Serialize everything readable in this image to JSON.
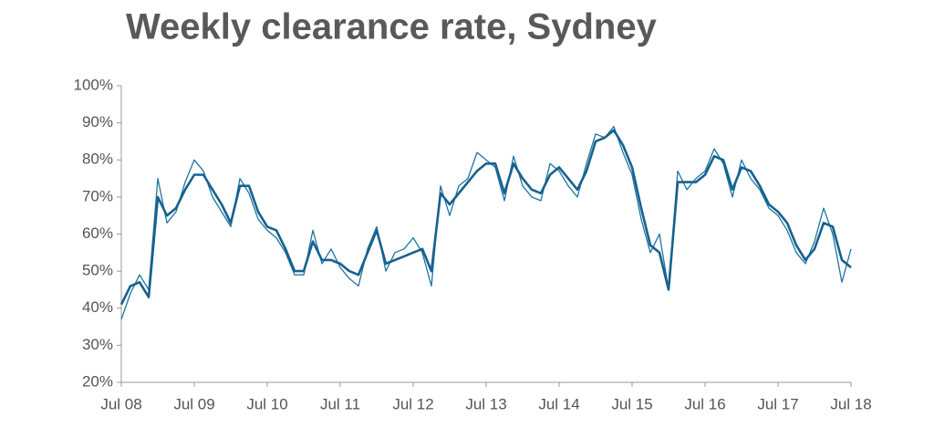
{
  "chart_data": {
    "type": "line",
    "title": "Weekly clearance rate, Sydney",
    "x": [
      2008.5,
      2008.625,
      2008.75,
      2008.875,
      2009,
      2009.125,
      2009.25,
      2009.375,
      2009.5,
      2009.625,
      2009.75,
      2009.875,
      2010,
      2010.125,
      2010.25,
      2010.375,
      2010.5,
      2010.625,
      2010.75,
      2010.875,
      2011,
      2011.125,
      2011.25,
      2011.375,
      2011.5,
      2011.625,
      2011.75,
      2011.875,
      2012,
      2012.125,
      2012.25,
      2012.375,
      2012.5,
      2012.625,
      2012.75,
      2012.875,
      2013,
      2013.125,
      2013.25,
      2013.375,
      2013.5,
      2013.625,
      2013.75,
      2013.875,
      2014,
      2014.125,
      2014.25,
      2014.375,
      2014.5,
      2014.625,
      2014.75,
      2014.875,
      2015,
      2015.125,
      2015.25,
      2015.375,
      2015.5,
      2015.625,
      2015.75,
      2015.875,
      2016,
      2016.125,
      2016.25,
      2016.375,
      2016.5,
      2016.625,
      2016.75,
      2016.875,
      2017,
      2017.125,
      2017.25,
      2017.375,
      2017.5,
      2017.625,
      2017.75,
      2017.875,
      2018,
      2018.125,
      2018.25,
      2018.375,
      2018.5
    ],
    "series": [
      {
        "color": "#1f74a3",
        "width": 1.3,
        "values": [
          37,
          44,
          49,
          45,
          75,
          63,
          66,
          74,
          80,
          77,
          70,
          66,
          62,
          75,
          71,
          64,
          61,
          59,
          55,
          49,
          49,
          61,
          52,
          56,
          51,
          48,
          46,
          56,
          62,
          50,
          55,
          56,
          59,
          55,
          46,
          73,
          65,
          73,
          75,
          82,
          80,
          78,
          69,
          81,
          73,
          70,
          69,
          79,
          77,
          73,
          70,
          79,
          87,
          86,
          89,
          82,
          76,
          64,
          55,
          60,
          45,
          77,
          72,
          75,
          77,
          83,
          79,
          70,
          80,
          75,
          72,
          67,
          65,
          61,
          55,
          52,
          58,
          67,
          60,
          47,
          56
        ]
      },
      {
        "color": "#17618c",
        "width": 2.6,
        "values": [
          41,
          46,
          47,
          43,
          70,
          65,
          67,
          72,
          76,
          76,
          72,
          68,
          63,
          73,
          73,
          66,
          62,
          61,
          56,
          50,
          50,
          58,
          53,
          53,
          52,
          50,
          49,
          55,
          61,
          52,
          53,
          54,
          55,
          56,
          50,
          71,
          68,
          71,
          74,
          77,
          79,
          79,
          71,
          79,
          75,
          72,
          71,
          76,
          78,
          75,
          72,
          77,
          85,
          86,
          88,
          84,
          78,
          67,
          57,
          55,
          45,
          74,
          74,
          74,
          76,
          81,
          80,
          72,
          78,
          77,
          73,
          68,
          66,
          63,
          57,
          53,
          56,
          63,
          62,
          53,
          51
        ]
      }
    ],
    "xlim": [
      2008.5,
      2018.5
    ],
    "xticks": [
      {
        "value": 2008.5,
        "label": "Jul 08"
      },
      {
        "value": 2009.5,
        "label": "Jul 09"
      },
      {
        "value": 2010.5,
        "label": "Jul 10"
      },
      {
        "value": 2011.5,
        "label": "Jul 11"
      },
      {
        "value": 2012.5,
        "label": "Jul 12"
      },
      {
        "value": 2013.5,
        "label": "Jul 13"
      },
      {
        "value": 2014.5,
        "label": "Jul 14"
      },
      {
        "value": 2015.5,
        "label": "Jul 15"
      },
      {
        "value": 2016.5,
        "label": "Jul 16"
      },
      {
        "value": 2017.5,
        "label": "Jul 17"
      },
      {
        "value": 2018.5,
        "label": "Jul 18"
      }
    ],
    "ylim": [
      20,
      100
    ],
    "yticks": [
      {
        "value": 20,
        "label": "20%"
      },
      {
        "value": 30,
        "label": "30%"
      },
      {
        "value": 40,
        "label": "40%"
      },
      {
        "value": 50,
        "label": "50%"
      },
      {
        "value": 60,
        "label": "60%"
      },
      {
        "value": 70,
        "label": "70%"
      },
      {
        "value": 80,
        "label": "80%"
      },
      {
        "value": 90,
        "label": "90%"
      },
      {
        "value": 100,
        "label": "100%"
      }
    ],
    "grid": false
  }
}
